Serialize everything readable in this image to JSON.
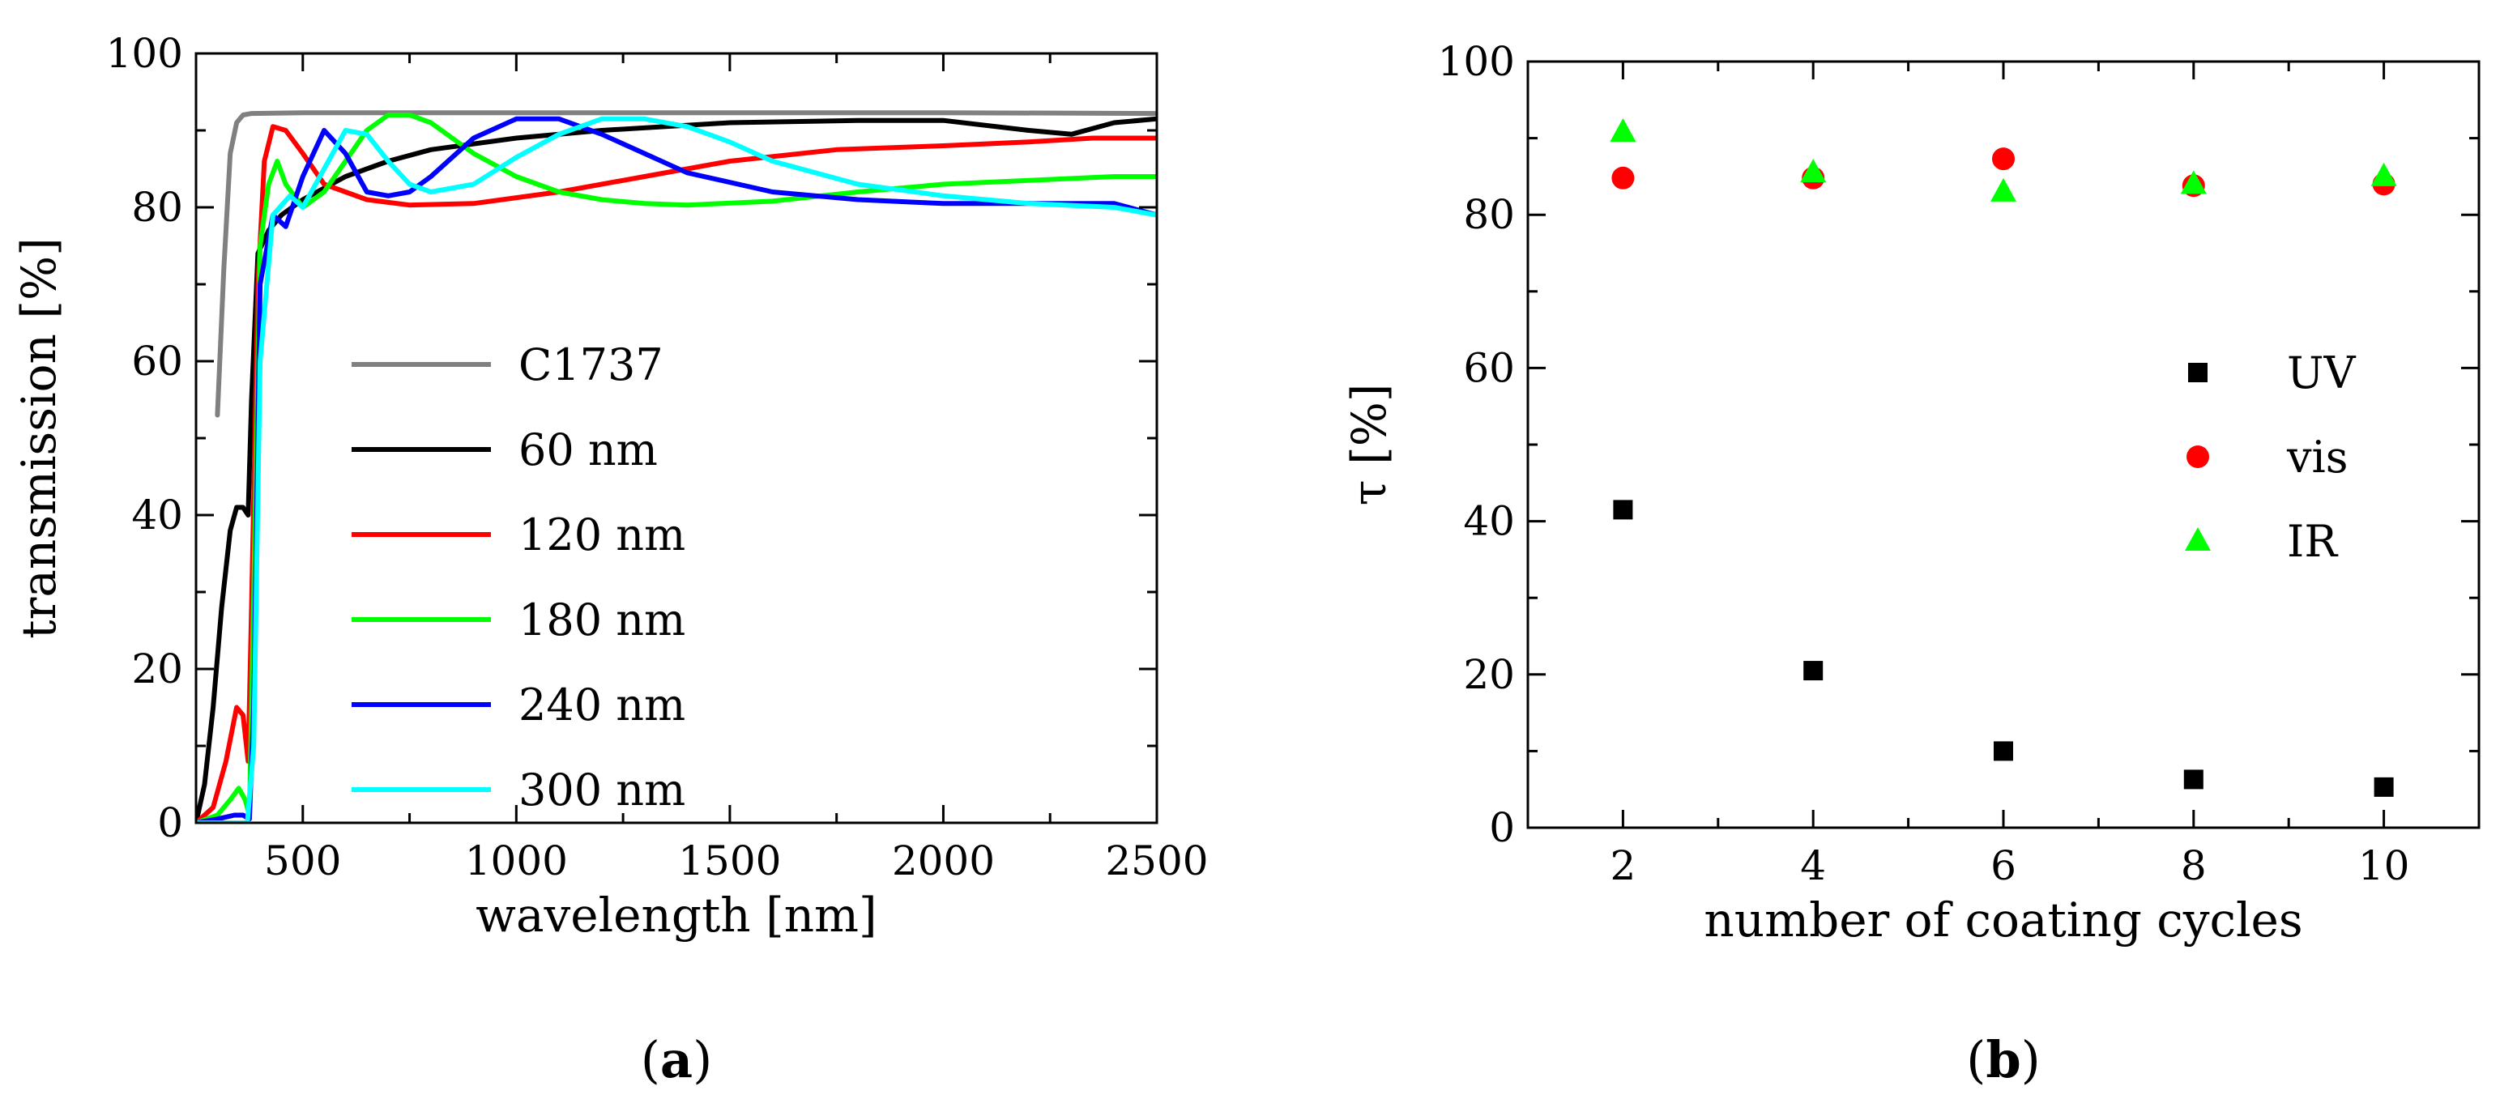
{
  "chart_data": [
    {
      "panel": "(a)",
      "panel_tag": {
        "open": "(",
        "letter": "a",
        "close": ")"
      },
      "type": "line",
      "title": "",
      "xlabel": "wavelength [nm]",
      "ylabel": "transmission [%]",
      "xlim": [
        250,
        2500
      ],
      "ylim": [
        0,
        100
      ],
      "xticks": [
        500,
        1000,
        1500,
        2000,
        2500
      ],
      "yticks": [
        0,
        20,
        40,
        60,
        80,
        100
      ],
      "grid": false,
      "legend_position": "center-left",
      "series": [
        {
          "name": "C1737",
          "color": "#808080",
          "x": [
            300,
            315,
            330,
            345,
            360,
            380,
            500,
            1000,
            1500,
            2000,
            2500
          ],
          "y": [
            53,
            72,
            87,
            91,
            92,
            92.2,
            92.3,
            92.3,
            92.3,
            92.3,
            92.2
          ]
        },
        {
          "name": "60 nm",
          "color": "#000000",
          "x": [
            250,
            270,
            290,
            310,
            330,
            345,
            360,
            372,
            380,
            395,
            420,
            450,
            500,
            600,
            700,
            800,
            1000,
            1200,
            1500,
            1800,
            2000,
            2200,
            2300,
            2400,
            2500
          ],
          "y": [
            0,
            5,
            15,
            28,
            38,
            41,
            41,
            40,
            55,
            74,
            77,
            79,
            81,
            84,
            86,
            87.5,
            89,
            90,
            91,
            91.3,
            91.3,
            90,
            89.5,
            91,
            91.5
          ]
        },
        {
          "name": "120 nm",
          "color": "#ff0000",
          "x": [
            250,
            290,
            320,
            345,
            360,
            372,
            380,
            395,
            410,
            430,
            460,
            500,
            550,
            650,
            750,
            900,
            1100,
            1300,
            1500,
            1750,
            2000,
            2200,
            2350,
            2500
          ],
          "y": [
            0,
            2,
            8,
            15,
            14,
            8,
            28,
            70,
            86,
            90.5,
            90,
            87,
            83,
            81,
            80.3,
            80.5,
            82,
            84,
            86,
            87.5,
            88,
            88.5,
            89,
            89
          ]
        },
        {
          "name": "180 nm",
          "color": "#00ff00",
          "x": [
            250,
            300,
            330,
            350,
            365,
            375,
            385,
            400,
            420,
            440,
            460,
            500,
            550,
            600,
            650,
            700,
            750,
            800,
            900,
            1000,
            1100,
            1200,
            1300,
            1400,
            1600,
            1800,
            2000,
            2200,
            2400,
            2500
          ],
          "y": [
            0,
            1,
            3,
            4.5,
            3,
            1,
            30,
            75,
            83,
            86,
            83,
            80,
            82,
            86,
            90,
            92,
            92,
            91,
            87,
            84,
            82,
            81,
            80.5,
            80.3,
            80.8,
            82,
            83,
            83.5,
            84,
            84
          ]
        },
        {
          "name": "240 nm",
          "color": "#0000ff",
          "x": [
            250,
            300,
            340,
            360,
            375,
            385,
            400,
            430,
            460,
            500,
            550,
            600,
            650,
            700,
            750,
            800,
            900,
            1000,
            1100,
            1200,
            1300,
            1400,
            1600,
            1800,
            2000,
            2200,
            2400,
            2500
          ],
          "y": [
            0,
            0.5,
            1,
            1,
            0.5,
            15,
            70,
            79,
            77.5,
            84,
            90,
            87,
            82,
            81.5,
            82,
            84,
            89,
            91.5,
            91.5,
            89.5,
            87,
            84.5,
            82,
            81,
            80.5,
            80.5,
            80.5,
            79
          ]
        },
        {
          "name": "300 nm",
          "color": "#00ffff",
          "x": [
            250,
            340,
            370,
            385,
            400,
            430,
            470,
            500,
            550,
            600,
            650,
            700,
            750,
            800,
            900,
            1000,
            1100,
            1200,
            1300,
            1400,
            1500,
            1600,
            1800,
            2000,
            2200,
            2400,
            2500
          ],
          "y": [
            0,
            0,
            0,
            10,
            60,
            79,
            81.5,
            80,
            85,
            90,
            89.5,
            86,
            83,
            82,
            83,
            86.5,
            89.5,
            91.5,
            91.5,
            90.5,
            88.5,
            86,
            83,
            81.5,
            80.5,
            80,
            79
          ]
        }
      ]
    },
    {
      "panel": "(b)",
      "panel_tag": {
        "open": "(",
        "letter": "b",
        "close": ")"
      },
      "type": "scatter",
      "title": "",
      "xlabel": "number of coating cycles",
      "ylabel": "τ [%]",
      "xlim": [
        1,
        11
      ],
      "ylim": [
        0,
        100
      ],
      "xticks": [
        2,
        4,
        6,
        8,
        10
      ],
      "yticks": [
        0,
        20,
        40,
        60,
        80,
        100
      ],
      "grid": false,
      "legend_position": "center-right",
      "series": [
        {
          "name": "UV",
          "marker": "square",
          "color": "#000000",
          "x": [
            2,
            4,
            6,
            8,
            10
          ],
          "y": [
            41.5,
            20.5,
            10,
            6.3,
            5.3
          ]
        },
        {
          "name": "vis",
          "marker": "circle",
          "color": "#ff0000",
          "x": [
            2,
            4,
            6,
            8,
            10
          ],
          "y": [
            84.8,
            84.8,
            87.3,
            83.8,
            84
          ]
        },
        {
          "name": "IR",
          "marker": "triangle",
          "color": "#00ff00",
          "x": [
            2,
            4,
            6,
            8,
            10
          ],
          "y": [
            90.8,
            85.5,
            83,
            84,
            85
          ]
        }
      ]
    }
  ]
}
